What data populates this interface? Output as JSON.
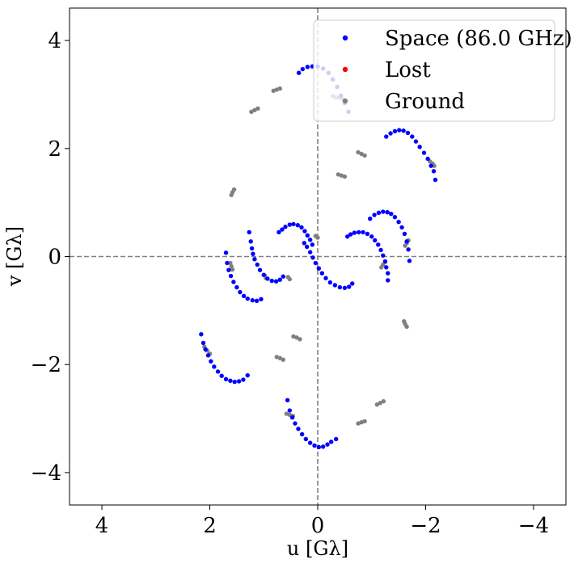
{
  "chart_data": {
    "type": "scatter",
    "xlabel": "u [Gλ]",
    "ylabel": "v [Gλ]",
    "xlim": [
      4.6,
      -4.6
    ],
    "ylim": [
      -4.6,
      4.6
    ],
    "xticks": [
      4,
      2,
      0,
      -2,
      -4
    ],
    "xtick_labels": [
      "4",
      "2",
      "0",
      "−2",
      "−4"
    ],
    "yticks": [
      -4,
      -2,
      0,
      2,
      4
    ],
    "ytick_labels": [
      "−4",
      "−2",
      "0",
      "2",
      "4"
    ],
    "reference_lines": [
      {
        "orientation": "vertical",
        "value": 0,
        "style": "dashed",
        "color": "#808080"
      },
      {
        "orientation": "horizontal",
        "value": 0,
        "style": "dashed",
        "color": "#808080"
      }
    ],
    "legend_position": "top-right",
    "series": [
      {
        "name": "Space (86.0 GHz)",
        "color": "#0000ff",
        "points": [
          [
            0.35,
            3.4
          ],
          [
            0.28,
            3.47
          ],
          [
            0.19,
            3.51
          ],
          [
            0.1,
            3.52
          ],
          [
            0.0,
            3.52
          ],
          [
            -0.1,
            3.48
          ],
          [
            -0.2,
            3.4
          ],
          [
            -0.28,
            3.28
          ],
          [
            -0.36,
            3.14
          ],
          [
            -0.43,
            2.98
          ],
          [
            -0.5,
            2.84
          ],
          [
            -0.57,
            2.68
          ],
          [
            -1.27,
            2.22
          ],
          [
            -1.35,
            2.28
          ],
          [
            -1.43,
            2.32
          ],
          [
            -1.51,
            2.34
          ],
          [
            -1.59,
            2.33
          ],
          [
            -1.67,
            2.29
          ],
          [
            -1.75,
            2.22
          ],
          [
            -1.82,
            2.13
          ],
          [
            -1.89,
            2.03
          ],
          [
            -1.97,
            1.92
          ],
          [
            -2.04,
            1.81
          ],
          [
            -2.1,
            1.68
          ],
          [
            -2.15,
            1.58
          ],
          [
            -2.18,
            1.42
          ],
          [
            -0.55,
            0.37
          ],
          [
            -0.61,
            0.41
          ],
          [
            -0.68,
            0.44
          ],
          [
            -0.76,
            0.45
          ],
          [
            -0.84,
            0.45
          ],
          [
            -0.92,
            0.42
          ],
          [
            -1.0,
            0.37
          ],
          [
            -1.06,
            0.3
          ],
          [
            -1.12,
            0.22
          ],
          [
            -1.17,
            0.12
          ],
          [
            -1.21,
            0.02
          ],
          [
            -1.25,
            -0.09
          ],
          [
            -1.27,
            -0.2
          ],
          [
            -1.3,
            -0.31
          ],
          [
            -1.3,
            -0.44
          ],
          [
            -0.97,
            0.7
          ],
          [
            -1.05,
            0.77
          ],
          [
            -1.13,
            0.81
          ],
          [
            -1.21,
            0.83
          ],
          [
            -1.29,
            0.82
          ],
          [
            -1.36,
            0.79
          ],
          [
            -1.43,
            0.73
          ],
          [
            -1.5,
            0.64
          ],
          [
            -1.56,
            0.54
          ],
          [
            -1.61,
            0.42
          ],
          [
            -1.65,
            0.28
          ],
          [
            -1.68,
            0.13
          ],
          [
            -1.7,
            -0.08
          ],
          [
            0.25,
            0.25
          ],
          [
            0.2,
            0.18
          ],
          [
            0.14,
            0.08
          ],
          [
            0.09,
            -0.02
          ],
          [
            0.04,
            -0.12
          ],
          [
            -0.02,
            -0.22
          ],
          [
            -0.08,
            -0.31
          ],
          [
            -0.15,
            -0.4
          ],
          [
            -0.23,
            -0.48
          ],
          [
            -0.32,
            -0.53
          ],
          [
            -0.41,
            -0.57
          ],
          [
            -0.5,
            -0.58
          ],
          [
            -0.58,
            -0.56
          ],
          [
            -0.64,
            -0.5
          ],
          [
            0.72,
            0.45
          ],
          [
            0.66,
            0.5
          ],
          [
            0.6,
            0.55
          ],
          [
            0.52,
            0.59
          ],
          [
            0.45,
            0.6
          ],
          [
            0.37,
            0.58
          ],
          [
            0.3,
            0.54
          ],
          [
            0.24,
            0.47
          ],
          [
            0.19,
            0.39
          ],
          [
            0.14,
            0.31
          ],
          [
            0.1,
            0.22
          ],
          [
            1.27,
            0.45
          ],
          [
            1.24,
            0.28
          ],
          [
            1.22,
            0.15
          ],
          [
            1.2,
            0.05
          ],
          [
            1.17,
            -0.05
          ],
          [
            1.12,
            -0.15
          ],
          [
            1.07,
            -0.25
          ],
          [
            1.0,
            -0.34
          ],
          [
            0.93,
            -0.41
          ],
          [
            0.85,
            -0.45
          ],
          [
            0.77,
            -0.46
          ],
          [
            0.7,
            -0.43
          ],
          [
            0.64,
            -0.37
          ],
          [
            1.7,
            0.07
          ],
          [
            1.68,
            -0.12
          ],
          [
            1.65,
            -0.25
          ],
          [
            1.61,
            -0.36
          ],
          [
            1.56,
            -0.47
          ],
          [
            1.5,
            -0.57
          ],
          [
            1.44,
            -0.66
          ],
          [
            1.37,
            -0.73
          ],
          [
            1.3,
            -0.78
          ],
          [
            1.21,
            -0.81
          ],
          [
            1.13,
            -0.82
          ],
          [
            1.05,
            -0.79
          ],
          [
            2.16,
            -1.44
          ],
          [
            2.12,
            -1.6
          ],
          [
            2.08,
            -1.72
          ],
          [
            2.03,
            -1.83
          ],
          [
            1.98,
            -1.94
          ],
          [
            1.92,
            -2.04
          ],
          [
            1.85,
            -2.13
          ],
          [
            1.78,
            -2.21
          ],
          [
            1.7,
            -2.27
          ],
          [
            1.62,
            -2.3
          ],
          [
            1.54,
            -2.32
          ],
          [
            1.46,
            -2.31
          ],
          [
            1.38,
            -2.28
          ],
          [
            1.3,
            -2.2
          ],
          [
            0.56,
            -2.66
          ],
          [
            0.52,
            -2.85
          ],
          [
            0.47,
            -2.98
          ],
          [
            0.42,
            -3.09
          ],
          [
            0.36,
            -3.19
          ],
          [
            0.29,
            -3.29
          ],
          [
            0.22,
            -3.38
          ],
          [
            0.14,
            -3.45
          ],
          [
            0.06,
            -3.5
          ],
          [
            -0.02,
            -3.53
          ],
          [
            -0.1,
            -3.52
          ],
          [
            -0.18,
            -3.48
          ],
          [
            -0.25,
            -3.43
          ],
          [
            -0.34,
            -3.38
          ]
        ]
      },
      {
        "name": "Lost",
        "color": "#ff0000",
        "points": []
      },
      {
        "name": "Ground",
        "color": "#808080",
        "points": [
          [
            0.82,
            3.07
          ],
          [
            0.76,
            3.09
          ],
          [
            0.7,
            3.11
          ],
          [
            1.23,
            2.68
          ],
          [
            1.17,
            2.71
          ],
          [
            1.11,
            2.74
          ],
          [
            1.6,
            1.14
          ],
          [
            1.58,
            1.19
          ],
          [
            1.55,
            1.24
          ],
          [
            2.1,
            -1.67
          ],
          [
            2.05,
            -1.74
          ],
          [
            2.0,
            -1.8
          ],
          [
            0.76,
            -1.86
          ],
          [
            0.7,
            -1.88
          ],
          [
            0.64,
            -1.91
          ],
          [
            0.45,
            -1.48
          ],
          [
            0.39,
            -1.5
          ],
          [
            0.33,
            -1.53
          ],
          [
            0.58,
            -2.91
          ],
          [
            0.52,
            -2.93
          ],
          [
            0.46,
            -2.95
          ],
          [
            -0.28,
            2.97
          ],
          [
            -0.34,
            2.95
          ],
          [
            -0.4,
            2.94
          ],
          [
            -0.47,
            2.91
          ],
          [
            -0.5,
            2.86
          ],
          [
            -0.75,
            1.93
          ],
          [
            -0.81,
            1.9
          ],
          [
            -0.87,
            1.87
          ],
          [
            -0.38,
            1.52
          ],
          [
            -0.44,
            1.5
          ],
          [
            -0.5,
            1.48
          ],
          [
            -1.68,
            0.3
          ],
          [
            -1.65,
            0.25
          ],
          [
            -1.62,
            0.2
          ],
          [
            -1.25,
            -0.1
          ],
          [
            -1.21,
            -0.15
          ],
          [
            -1.18,
            -0.2
          ],
          [
            -1.6,
            -1.2
          ],
          [
            -1.62,
            -1.25
          ],
          [
            -1.65,
            -1.3
          ],
          [
            -0.75,
            -3.09
          ],
          [
            -0.81,
            -3.07
          ],
          [
            -0.87,
            -3.05
          ],
          [
            -1.1,
            -2.74
          ],
          [
            -1.16,
            -2.71
          ],
          [
            -1.22,
            -2.68
          ],
          [
            -2.08,
            1.76
          ],
          [
            -2.13,
            1.72
          ],
          [
            -2.16,
            1.68
          ],
          [
            1.62,
            -0.12
          ],
          [
            1.6,
            -0.18
          ],
          [
            1.58,
            -0.24
          ],
          [
            0.98,
            -0.35
          ],
          [
            0.96,
            -0.4
          ],
          [
            0.04,
            0.38
          ],
          [
            0.0,
            0.35
          ],
          [
            0.55,
            -0.38
          ],
          [
            0.52,
            -0.42
          ]
        ]
      }
    ]
  }
}
